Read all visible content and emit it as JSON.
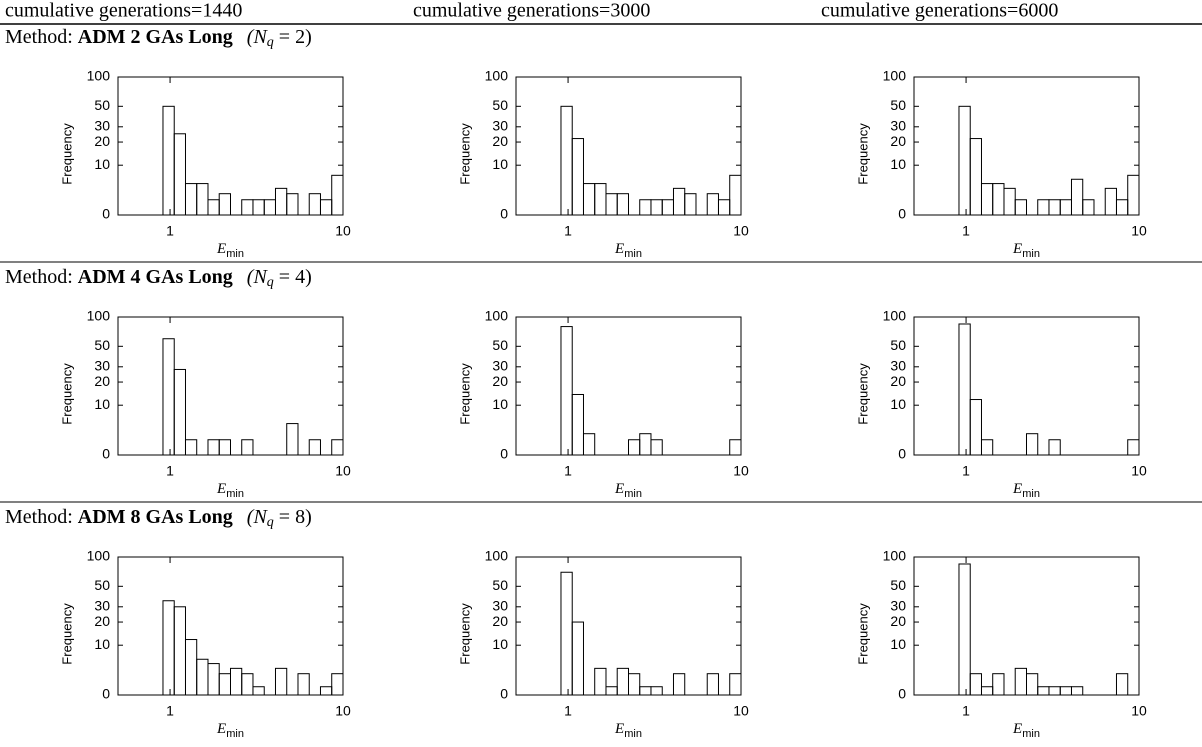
{
  "header": {
    "columns": [
      "cumulative generations=1440",
      "cumulative generations=3000",
      "cumulative generations=6000"
    ]
  },
  "sections": [
    {
      "prefix": "Method: ",
      "method": "ADM 2 GAs Long",
      "param": [
        "(N",
        "q",
        " = 2)"
      ],
      "chart_data": [
        {
          "type": "histogram",
          "bins": [
            0.5,
            0.581,
            0.675,
            0.784,
            0.91,
            1.057,
            1.228,
            1.426,
            1.657,
            1.924,
            2.236,
            2.597,
            3.016,
            3.504,
            4.07,
            4.728,
            5.492,
            6.379,
            7.409,
            8.607,
            10
          ],
          "counts": [
            0,
            0,
            0,
            0,
            50,
            25,
            5,
            5,
            2,
            3,
            0,
            2,
            2,
            2,
            4,
            3,
            0,
            3,
            2,
            7
          ],
          "xlim": [
            0.5,
            10
          ],
          "xticks": [
            1,
            10
          ],
          "xscale": "log",
          "ylim": [
            0,
            100
          ],
          "yticks": [
            0,
            10,
            20,
            30,
            50,
            100
          ],
          "xlabel": {
            "symbol": "E",
            "subscript": "min"
          },
          "ylabel": "Frequency"
        },
        {
          "type": "histogram",
          "bins": [
            0.5,
            0.581,
            0.675,
            0.784,
            0.91,
            1.057,
            1.228,
            1.426,
            1.657,
            1.924,
            2.236,
            2.597,
            3.016,
            3.504,
            4.07,
            4.728,
            5.492,
            6.379,
            7.409,
            8.607,
            10
          ],
          "counts": [
            0,
            0,
            0,
            0,
            50,
            22,
            5,
            5,
            3,
            3,
            0,
            2,
            2,
            2,
            4,
            3,
            0,
            3,
            2,
            7
          ],
          "xlim": [
            0.5,
            10
          ],
          "xticks": [
            1,
            10
          ],
          "xscale": "log",
          "ylim": [
            0,
            100
          ],
          "yticks": [
            0,
            10,
            20,
            30,
            50,
            100
          ],
          "xlabel": {
            "symbol": "E",
            "subscript": "min"
          },
          "ylabel": "Frequency"
        },
        {
          "type": "histogram",
          "bins": [
            0.5,
            0.581,
            0.675,
            0.784,
            0.91,
            1.057,
            1.228,
            1.426,
            1.657,
            1.924,
            2.236,
            2.597,
            3.016,
            3.504,
            4.07,
            4.728,
            5.492,
            6.379,
            7.409,
            8.607,
            10
          ],
          "counts": [
            0,
            0,
            0,
            0,
            50,
            22,
            5,
            5,
            4,
            2,
            0,
            2,
            2,
            2,
            6,
            2,
            0,
            4,
            2,
            7
          ],
          "xlim": [
            0.5,
            10
          ],
          "xticks": [
            1,
            10
          ],
          "xscale": "log",
          "ylim": [
            0,
            100
          ],
          "yticks": [
            0,
            10,
            20,
            30,
            50,
            100
          ],
          "xlabel": {
            "symbol": "E",
            "subscript": "min"
          },
          "ylabel": "Frequency"
        }
      ]
    },
    {
      "prefix": "Method: ",
      "method": "ADM 4 GAs Long",
      "param": [
        "(N",
        "q",
        " = 4)"
      ],
      "chart_data": [
        {
          "type": "histogram",
          "bins": [
            0.5,
            0.581,
            0.675,
            0.784,
            0.91,
            1.057,
            1.228,
            1.426,
            1.657,
            1.924,
            2.236,
            2.597,
            3.016,
            3.504,
            4.07,
            4.728,
            5.492,
            6.379,
            7.409,
            8.607,
            10
          ],
          "counts": [
            0,
            0,
            0,
            0,
            60,
            28,
            2,
            0,
            2,
            2,
            0,
            2,
            0,
            0,
            0,
            5,
            0,
            2,
            0,
            2
          ],
          "xlim": [
            0.5,
            10
          ],
          "xticks": [
            1,
            10
          ],
          "xscale": "log",
          "ylim": [
            0,
            100
          ],
          "yticks": [
            0,
            10,
            20,
            30,
            50,
            100
          ],
          "xlabel": {
            "symbol": "E",
            "subscript": "min"
          },
          "ylabel": "Frequency"
        },
        {
          "type": "histogram",
          "bins": [
            0.5,
            0.581,
            0.675,
            0.784,
            0.91,
            1.057,
            1.228,
            1.426,
            1.657,
            1.924,
            2.236,
            2.597,
            3.016,
            3.504,
            4.07,
            4.728,
            5.492,
            6.379,
            7.409,
            8.607,
            10
          ],
          "counts": [
            0,
            0,
            0,
            0,
            80,
            14,
            3,
            0,
            0,
            0,
            2,
            3,
            2,
            0,
            0,
            0,
            0,
            0,
            0,
            2
          ],
          "xlim": [
            0.5,
            10
          ],
          "xticks": [
            1,
            10
          ],
          "xscale": "log",
          "ylim": [
            0,
            100
          ],
          "yticks": [
            0,
            10,
            20,
            30,
            50,
            100
          ],
          "xlabel": {
            "symbol": "E",
            "subscript": "min"
          },
          "ylabel": "Frequency"
        },
        {
          "type": "histogram",
          "bins": [
            0.5,
            0.581,
            0.675,
            0.784,
            0.91,
            1.057,
            1.228,
            1.426,
            1.657,
            1.924,
            2.236,
            2.597,
            3.016,
            3.504,
            4.07,
            4.728,
            5.492,
            6.379,
            7.409,
            8.607,
            10
          ],
          "counts": [
            0,
            0,
            0,
            0,
            85,
            12,
            2,
            0,
            0,
            0,
            3,
            0,
            2,
            0,
            0,
            0,
            0,
            0,
            0,
            2
          ],
          "xlim": [
            0.5,
            10
          ],
          "xticks": [
            1,
            10
          ],
          "xscale": "log",
          "ylim": [
            0,
            100
          ],
          "yticks": [
            0,
            10,
            20,
            30,
            50,
            100
          ],
          "xlabel": {
            "symbol": "E",
            "subscript": "min"
          },
          "ylabel": "Frequency"
        }
      ]
    },
    {
      "prefix": "Method: ",
      "method": "ADM 8 GAs Long",
      "param": [
        "(N",
        "q",
        " = 8)"
      ],
      "chart_data": [
        {
          "type": "histogram",
          "bins": [
            0.5,
            0.581,
            0.675,
            0.784,
            0.91,
            1.057,
            1.228,
            1.426,
            1.657,
            1.924,
            2.236,
            2.597,
            3.016,
            3.504,
            4.07,
            4.728,
            5.492,
            6.379,
            7.409,
            8.607,
            10
          ],
          "counts": [
            0,
            0,
            0,
            0,
            35,
            30,
            12,
            6,
            5,
            3,
            4,
            3,
            1,
            0,
            4,
            0,
            3,
            0,
            1,
            3
          ],
          "xlim": [
            0.5,
            10
          ],
          "xticks": [
            1,
            10
          ],
          "xscale": "log",
          "ylim": [
            0,
            100
          ],
          "yticks": [
            0,
            10,
            20,
            30,
            50,
            100
          ],
          "xlabel": {
            "symbol": "E",
            "subscript": "min"
          },
          "ylabel": "Frequency"
        },
        {
          "type": "histogram",
          "bins": [
            0.5,
            0.581,
            0.675,
            0.784,
            0.91,
            1.057,
            1.228,
            1.426,
            1.657,
            1.924,
            2.236,
            2.597,
            3.016,
            3.504,
            4.07,
            4.728,
            5.492,
            6.379,
            7.409,
            8.607,
            10
          ],
          "counts": [
            0,
            0,
            0,
            0,
            70,
            20,
            0,
            4,
            1,
            4,
            3,
            1,
            1,
            0,
            3,
            0,
            0,
            3,
            0,
            3
          ],
          "xlim": [
            0.5,
            10
          ],
          "xticks": [
            1,
            10
          ],
          "xscale": "log",
          "ylim": [
            0,
            100
          ],
          "yticks": [
            0,
            10,
            20,
            30,
            50,
            100
          ],
          "xlabel": {
            "symbol": "E",
            "subscript": "min"
          },
          "ylabel": "Frequency"
        },
        {
          "type": "histogram",
          "bins": [
            0.5,
            0.581,
            0.675,
            0.784,
            0.91,
            1.057,
            1.228,
            1.426,
            1.657,
            1.924,
            2.236,
            2.597,
            3.016,
            3.504,
            4.07,
            4.728,
            5.492,
            6.379,
            7.409,
            8.607,
            10
          ],
          "counts": [
            0,
            0,
            0,
            0,
            85,
            3,
            1,
            3,
            0,
            4,
            3,
            1,
            1,
            1,
            1,
            0,
            0,
            0,
            3,
            0
          ],
          "xlim": [
            0.5,
            10
          ],
          "xticks": [
            1,
            10
          ],
          "xscale": "log",
          "ylim": [
            0,
            100
          ],
          "yticks": [
            0,
            10,
            20,
            30,
            50,
            100
          ],
          "xlabel": {
            "symbol": "E",
            "subscript": "min"
          },
          "ylabel": "Frequency"
        }
      ]
    }
  ]
}
